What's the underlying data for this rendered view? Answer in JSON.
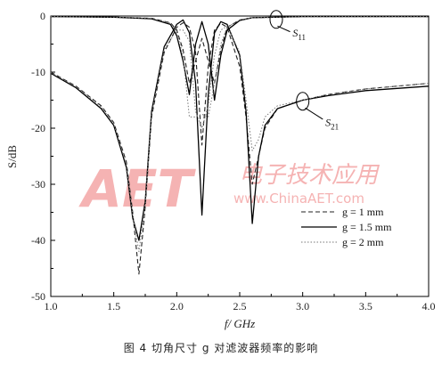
{
  "caption": "图 4   切角尺寸 g 对滤波器频率的影响",
  "watermark": {
    "logo": "AET",
    "cn": "电子技术应用",
    "url": "www.ChinaAET.com",
    "color": "#f4a6a6"
  },
  "chart_data": {
    "type": "line",
    "xlabel": "f/ GHz",
    "ylabel": "S/dB",
    "xlim": [
      1.0,
      4.0
    ],
    "ylim": [
      -50,
      0
    ],
    "xticks": [
      "1.0",
      "1.5",
      "2.0",
      "2.5",
      "3.0",
      "3.5",
      "4.0"
    ],
    "yticks": [
      "0",
      "-10",
      "-20",
      "-30",
      "-40",
      "-50"
    ],
    "annotations": [
      {
        "text": "S",
        "sub": "11",
        "x": 2.92,
        "y": -3.0
      },
      {
        "text": "S",
        "sub": "21",
        "x": 3.18,
        "y": -19.0
      }
    ],
    "legend": {
      "position": "bottom-right",
      "entries": [
        {
          "label": "g = 1 mm",
          "style": "dashed"
        },
        {
          "label": "g = 1.5 mm",
          "style": "solid"
        },
        {
          "label": "g = 2 mm",
          "style": "dotted"
        }
      ]
    },
    "series": [
      {
        "name": "S21 (g = 1 mm)",
        "style": "dashed",
        "x": [
          1.0,
          1.2,
          1.4,
          1.5,
          1.6,
          1.65,
          1.7,
          1.75,
          1.8,
          1.9,
          2.0,
          2.05,
          2.1,
          2.15,
          2.2,
          2.25,
          2.3,
          2.35,
          2.4,
          2.5,
          2.55,
          2.6,
          2.65,
          2.7,
          2.8,
          3.0,
          3.2,
          3.5,
          4.0
        ],
        "y": [
          -10.0,
          -12.5,
          -16.0,
          -19.0,
          -26.0,
          -35.0,
          -46.0,
          -34.0,
          -18.0,
          -6.5,
          -2.0,
          -1.2,
          -2.0,
          -6.5,
          -23.0,
          -9.0,
          -2.5,
          -1.3,
          -2.0,
          -9.0,
          -18.0,
          -30.0,
          -25.0,
          -20.0,
          -16.5,
          -15.0,
          -14.0,
          -13.0,
          -12.0
        ]
      },
      {
        "name": "S21 (g = 1.5 mm)",
        "style": "solid",
        "x": [
          1.0,
          1.2,
          1.4,
          1.5,
          1.6,
          1.65,
          1.7,
          1.75,
          1.8,
          1.9,
          2.0,
          2.05,
          2.1,
          2.15,
          2.2,
          2.25,
          2.3,
          2.35,
          2.4,
          2.5,
          2.55,
          2.6,
          2.65,
          2.7,
          2.8,
          3.0,
          3.2,
          3.5,
          4.0
        ],
        "y": [
          -10.2,
          -12.8,
          -16.5,
          -19.5,
          -27.0,
          -36.0,
          -40.0,
          -33.0,
          -17.0,
          -5.5,
          -1.5,
          -0.7,
          -3.0,
          -12.0,
          -35.5,
          -14.0,
          -3.0,
          -1.0,
          -1.5,
          -7.0,
          -17.0,
          -37.0,
          -25.0,
          -19.5,
          -16.5,
          -15.0,
          -14.2,
          -13.3,
          -12.5
        ]
      },
      {
        "name": "S21 (g = 2 mm)",
        "style": "dotted",
        "x": [
          1.0,
          1.2,
          1.4,
          1.5,
          1.6,
          1.65,
          1.7,
          1.75,
          1.8,
          1.9,
          2.0,
          2.05,
          2.1,
          2.15,
          2.2,
          2.25,
          2.3,
          2.35,
          2.4,
          2.5,
          2.55,
          2.6,
          2.65,
          2.7,
          2.8,
          3.0,
          3.2,
          3.5,
          4.0
        ],
        "y": [
          -10.1,
          -12.6,
          -16.2,
          -19.2,
          -26.5,
          -35.5,
          -42.0,
          -33.5,
          -17.5,
          -6.0,
          -2.5,
          -2.5,
          -4.5,
          -17.0,
          -20.0,
          -16.0,
          -7.0,
          -2.5,
          -1.8,
          -6.5,
          -15.0,
          -24.0,
          -22.0,
          -18.0,
          -16.0,
          -15.0,
          -14.0,
          -13.0,
          -12.0
        ]
      },
      {
        "name": "S11 (g = 1 mm)",
        "style": "dashed",
        "x": [
          1.0,
          1.5,
          1.8,
          1.95,
          2.0,
          2.05,
          2.1,
          2.15,
          2.2,
          2.25,
          2.3,
          2.35,
          2.4,
          2.5,
          2.6,
          3.0,
          4.0
        ],
        "y": [
          -0.1,
          -0.2,
          -0.4,
          -1.2,
          -2.5,
          -6.0,
          -12.0,
          -8.0,
          -4.0,
          -8.0,
          -12.0,
          -6.0,
          -2.0,
          -0.7,
          -0.3,
          -0.1,
          -0.1
        ]
      },
      {
        "name": "S11 (g = 1.5 mm)",
        "style": "solid",
        "x": [
          1.0,
          1.5,
          1.8,
          1.95,
          2.0,
          2.05,
          2.1,
          2.15,
          2.2,
          2.25,
          2.3,
          2.35,
          2.4,
          2.5,
          2.6,
          3.0,
          4.0
        ],
        "y": [
          -0.1,
          -0.2,
          -0.5,
          -1.5,
          -3.5,
          -8.0,
          -14.0,
          -5.0,
          -1.0,
          -5.0,
          -15.0,
          -7.0,
          -2.5,
          -0.8,
          -0.3,
          -0.1,
          -0.1
        ]
      },
      {
        "name": "S11 (g = 2 mm)",
        "style": "dotted",
        "x": [
          1.0,
          1.5,
          1.8,
          1.95,
          2.0,
          2.05,
          2.1,
          2.15,
          2.2,
          2.25,
          2.3,
          2.35,
          2.4,
          2.5,
          2.6,
          3.0,
          4.0
        ],
        "y": [
          -0.1,
          -0.2,
          -0.4,
          -1.3,
          -3.0,
          -7.0,
          -18.0,
          -18.0,
          -17.5,
          -18.0,
          -12.0,
          -5.0,
          -2.0,
          -0.7,
          -0.3,
          -0.1,
          -0.1
        ]
      }
    ]
  }
}
